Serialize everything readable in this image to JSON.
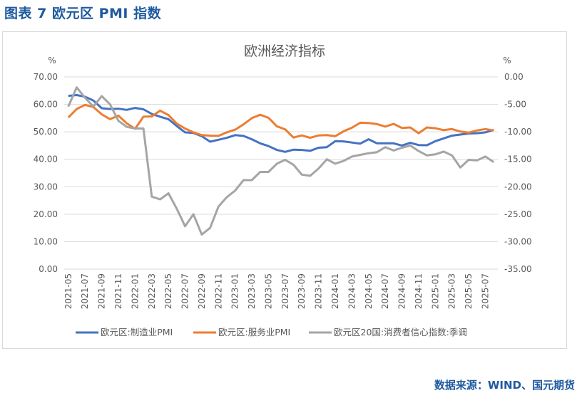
{
  "figure_title": "图表 7 欧元区 PMI 指数",
  "source": "数据来源：WIND、国元期货",
  "chart_data": {
    "type": "line",
    "title": "欧洲经济指标",
    "ylabel_left": "%",
    "ylabel_right": "%",
    "ylim_left": [
      0,
      70
    ],
    "ylim_right": [
      -35,
      0
    ],
    "yticks_left": [
      "0.00",
      "10.00",
      "20.00",
      "30.00",
      "40.00",
      "50.00",
      "60.00",
      "70.00"
    ],
    "yticks_right": [
      "-35.00",
      "-30.00",
      "-25.00",
      "-20.00",
      "-15.00",
      "-10.00",
      "-5.00",
      "0.00"
    ],
    "grid": true,
    "legend_position": "bottom",
    "x": [
      "2021-05",
      "2021-06",
      "2021-07",
      "2021-08",
      "2021-09",
      "2021-10",
      "2021-11",
      "2021-12",
      "2022-01",
      "2022-02",
      "2022-03",
      "2022-04",
      "2022-05",
      "2022-06",
      "2022-07",
      "2022-08",
      "2022-09",
      "2022-10",
      "2022-11",
      "2022-12",
      "2023-01",
      "2023-02",
      "2023-03",
      "2023-04",
      "2023-05",
      "2023-06",
      "2023-07",
      "2023-08",
      "2023-09",
      "2023-10",
      "2023-11",
      "2023-12",
      "2024-01",
      "2024-02",
      "2024-03",
      "2024-04",
      "2024-05",
      "2024-06",
      "2024-07",
      "2024-08",
      "2024-09",
      "2024-10",
      "2024-11",
      "2024-12",
      "2025-01",
      "2025-02",
      "2025-03",
      "2025-04",
      "2025-05",
      "2025-06",
      "2025-07",
      "2025-08"
    ],
    "xtick_labels": [
      "2021-05",
      "2021-07",
      "2021-09",
      "2021-11",
      "2022-01",
      "2022-03",
      "2022-05",
      "2022-07",
      "2022-09",
      "2022-11",
      "2023-01",
      "2023-03",
      "2023-05",
      "2023-07",
      "2023-09",
      "2023-11",
      "2024-01",
      "2024-03",
      "2024-05",
      "2024-07",
      "2024-09",
      "2024-11",
      "2025-01",
      "2025-03",
      "2025-05",
      "2025-07"
    ],
    "series": [
      {
        "name": "欧元区:制造业PMI",
        "axis": "left",
        "color": "#4472c4",
        "values": [
          63.1,
          63.4,
          62.8,
          61.4,
          58.6,
          58.3,
          58.4,
          58.0,
          58.7,
          58.2,
          56.5,
          55.5,
          54.6,
          52.1,
          49.8,
          49.6,
          48.4,
          46.4,
          47.1,
          47.8,
          48.8,
          48.5,
          47.3,
          45.8,
          44.8,
          43.4,
          42.7,
          43.5,
          43.4,
          43.1,
          44.2,
          44.4,
          46.6,
          46.5,
          46.1,
          45.7,
          47.3,
          45.8,
          45.8,
          45.8,
          45.0,
          46.0,
          45.2,
          45.1,
          46.6,
          47.6,
          48.6,
          49.0,
          49.4,
          49.5,
          49.8,
          50.7
        ]
      },
      {
        "name": "欧元区:服务业PMI",
        "axis": "left",
        "color": "#ed7d31",
        "values": [
          55.2,
          58.3,
          59.8,
          59.0,
          56.4,
          54.6,
          55.9,
          53.1,
          51.1,
          55.5,
          55.6,
          57.7,
          56.1,
          53.0,
          51.2,
          49.8,
          48.8,
          48.6,
          48.5,
          49.8,
          50.8,
          52.7,
          55.0,
          56.2,
          55.1,
          52.0,
          50.9,
          47.9,
          48.7,
          47.8,
          48.7,
          48.8,
          48.4,
          50.2,
          51.5,
          53.3,
          53.2,
          52.8,
          51.9,
          52.9,
          51.4,
          51.6,
          49.5,
          51.6,
          51.3,
          50.6,
          51.0,
          50.1,
          49.7,
          50.5,
          51.0,
          50.5
        ]
      },
      {
        "name": "欧元区20国:消费者信心指数:季调",
        "axis": "right",
        "color": "#a5a5a5",
        "values": [
          -5.4,
          -1.9,
          -3.8,
          -5.4,
          -3.5,
          -5.0,
          -8.0,
          -9.1,
          -9.4,
          -9.4,
          -21.8,
          -22.3,
          -21.2,
          -24.0,
          -27.2,
          -25.0,
          -28.7,
          -27.5,
          -23.6,
          -21.9,
          -20.7,
          -18.8,
          -18.8,
          -17.3,
          -17.3,
          -15.8,
          -15.1,
          -16.0,
          -17.8,
          -18.0,
          -16.7,
          -15.0,
          -15.8,
          -15.3,
          -14.5,
          -14.2,
          -13.9,
          -13.7,
          -12.8,
          -13.4,
          -12.9,
          -12.5,
          -13.5,
          -14.3,
          -14.1,
          -13.6,
          -14.3,
          -16.5,
          -15.1,
          -15.2,
          -14.5,
          -15.5
        ]
      }
    ]
  }
}
